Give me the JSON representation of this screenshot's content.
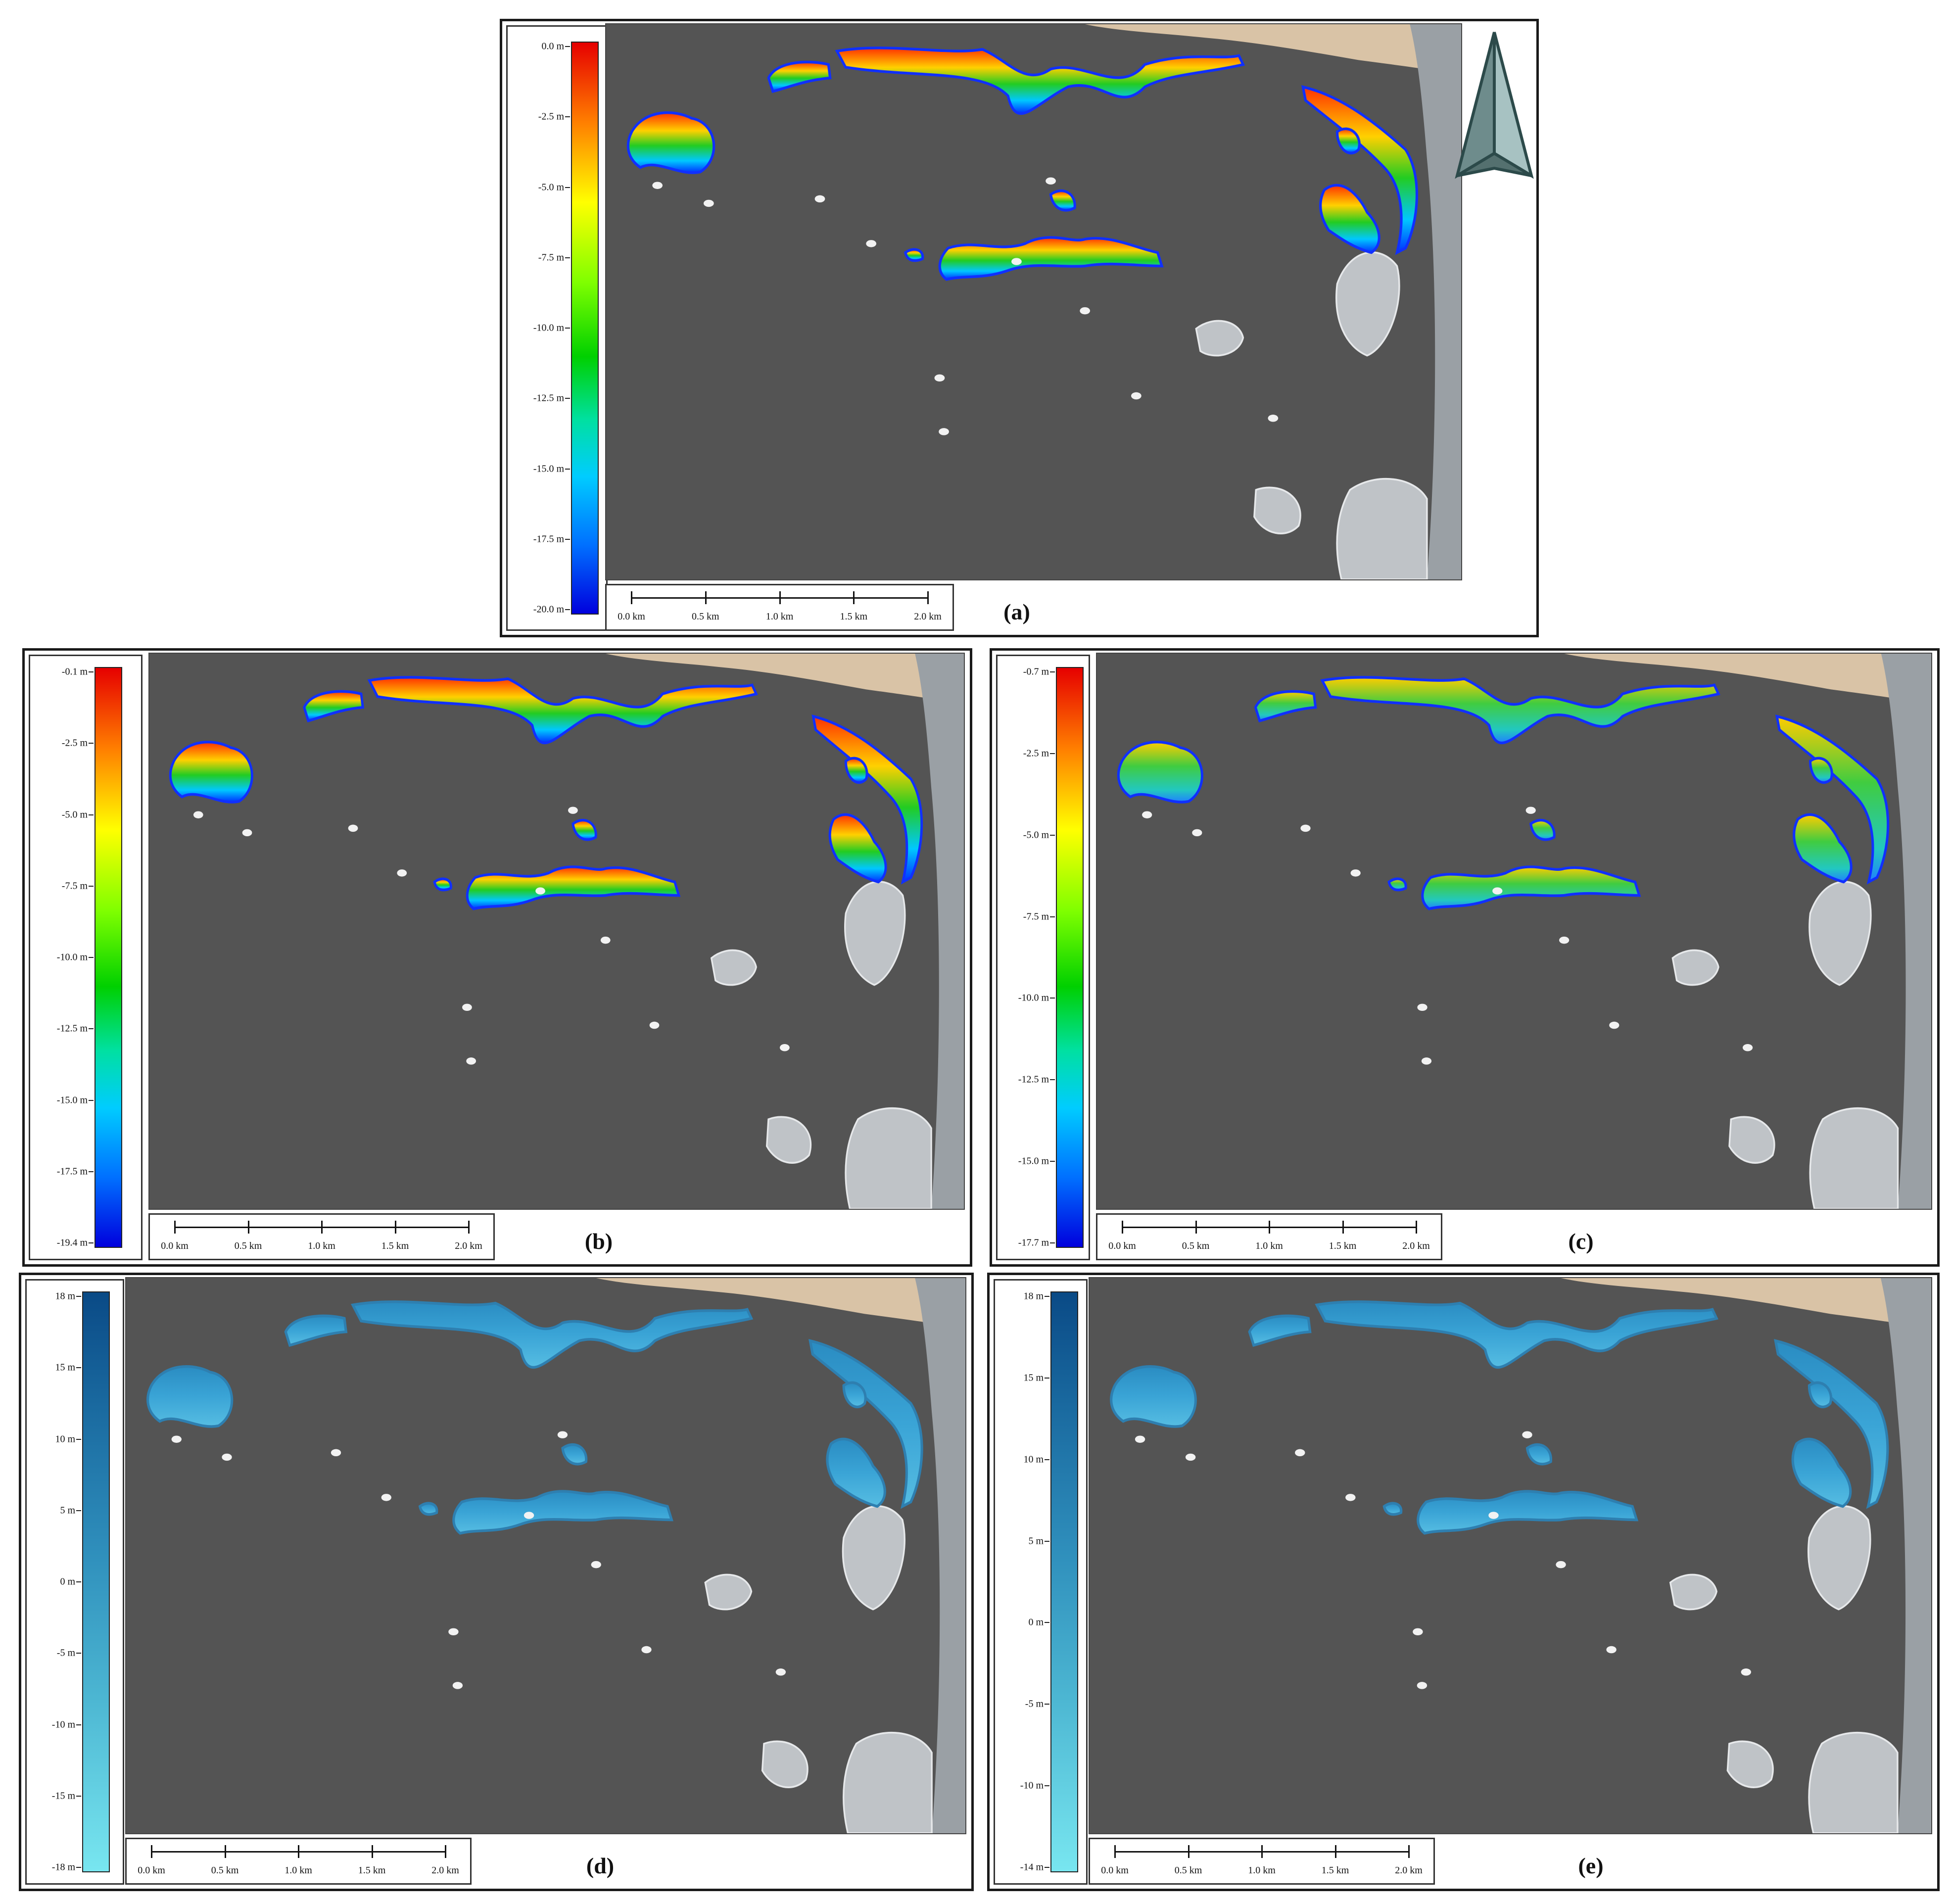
{
  "scale_labels": [
    "0.0 km",
    "0.5 km",
    "1.0 km",
    "1.5 km",
    "2.0 km"
  ],
  "icons": {
    "north": "north-arrow-icon"
  },
  "colors": {
    "land": "#d9c3a6",
    "water": "#545454",
    "rock": "#bfc3c7",
    "rainbow_ramp": "red-to-blue",
    "depth_ramp": "#0a4a86-to-#78e6f0"
  },
  "panels": [
    {
      "id": "a",
      "label": "(a)",
      "ramp": "rainbow",
      "legend_ticks": [
        "0.0 m",
        "-2.5 m",
        "-5.0 m",
        "-7.5 m",
        "-10.0 m",
        "-12.5 m",
        "-15.0 m",
        "-17.5 m",
        "-20.0 m"
      ]
    },
    {
      "id": "b",
      "label": "(b)",
      "ramp": "rainbow",
      "legend_ticks": [
        "-0.1 m",
        "-2.5 m",
        "-5.0 m",
        "-7.5 m",
        "-10.0 m",
        "-12.5 m",
        "-15.0 m",
        "-17.5 m",
        "-19.4 m"
      ]
    },
    {
      "id": "c",
      "label": "(c)",
      "ramp": "rainbow",
      "legend_ticks": [
        "-0.7 m",
        "-2.5 m",
        "-5.0 m",
        "-7.5 m",
        "-10.0 m",
        "-12.5 m",
        "-15.0 m",
        "-17.7 m"
      ]
    },
    {
      "id": "d",
      "label": "(d)",
      "ramp": "blue",
      "legend_ticks": [
        "18 m",
        "15 m",
        "10 m",
        "5 m",
        "0 m",
        "-5 m",
        "-10 m",
        "-15 m",
        "-18 m"
      ]
    },
    {
      "id": "e",
      "label": "(e)",
      "ramp": "blue",
      "legend_ticks": [
        "18 m",
        "15 m",
        "10 m",
        "5 m",
        "0 m",
        "-5 m",
        "-10 m",
        "-14 m"
      ]
    }
  ]
}
